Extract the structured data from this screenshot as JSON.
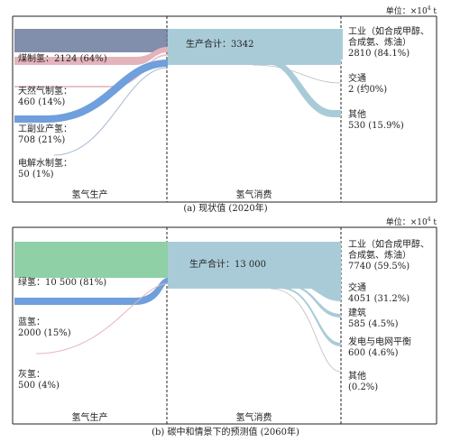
{
  "panels": [
    {
      "unit_prefix": "单位：×10",
      "unit_exp": "4",
      "unit_suffix": " t",
      "production": [
        {
          "label": "煤制氢：2124 (64%)",
          "value": 2124,
          "share": 64,
          "color": "#e3b4bb"
        },
        {
          "label": "天然气制氢：\n460 (14%)",
          "value": 460,
          "share": 14,
          "color": "#f3d9dc"
        },
        {
          "label": "工副业产氢：\n708 (21%)",
          "value": 708,
          "share": 21,
          "color": "#6f9fdc"
        },
        {
          "label": "电解水制氢：\n50 (1%)",
          "value": 50,
          "share": 1,
          "color": "#bfcfe8"
        }
      ],
      "total_label": "生产合计：3342",
      "consumption": [
        {
          "label": "工业（如合成甲醇、\n合成氨、炼油）\n2810 (84.1%)",
          "value": 2810,
          "share": 84.1
        },
        {
          "label": "交通\n2 (约0%)",
          "value": 2,
          "share": 0
        },
        {
          "label": "其他\n530 (15.9%)",
          "value": 530,
          "share": 15.9
        }
      ],
      "zone_production": "氢气生产",
      "zone_consumption": "氢气消费",
      "caption": "(a) 现状值 (2020年)"
    },
    {
      "unit_prefix": "单位：×10",
      "unit_exp": "4",
      "unit_suffix": " t",
      "production": [
        {
          "label": "绿氢：10 500 (81%)",
          "value": 10500,
          "share": 81,
          "color": "#8fd0a6"
        },
        {
          "label": "蓝氢：\n2000 (15%)",
          "value": 2000,
          "share": 15,
          "color": "#6f9fdc"
        },
        {
          "label": "灰氢：\n500 (4%)",
          "value": 500,
          "share": 4,
          "color": "#e3b4bb"
        }
      ],
      "total_label": "生产合计：13 000",
      "consumption": [
        {
          "label": "工业（如合成甲醇、\n合成氨、炼油）\n7740 (59.5%)",
          "value": 7740,
          "share": 59.5
        },
        {
          "label": "交通\n4051 (31.2%)",
          "value": 4051,
          "share": 31.2
        },
        {
          "label": "建筑\n585 (4.5%)",
          "value": 585,
          "share": 4.5
        },
        {
          "label": "发电与电网平衡\n600 (4.6%)",
          "value": 600,
          "share": 4.6
        },
        {
          "label": "其他\n(0.2%)",
          "value": 26,
          "share": 0.2
        }
      ],
      "zone_production": "氢气生产",
      "zone_consumption": "氢气消费",
      "caption": "(b) 碳中和情景下的预测值 (2060年)"
    }
  ],
  "colors": {
    "hub": "#a9cbd8",
    "flow_out": "#a9cbd8",
    "top_bar_a": "#6b7a9e",
    "frame": "#222222"
  }
}
